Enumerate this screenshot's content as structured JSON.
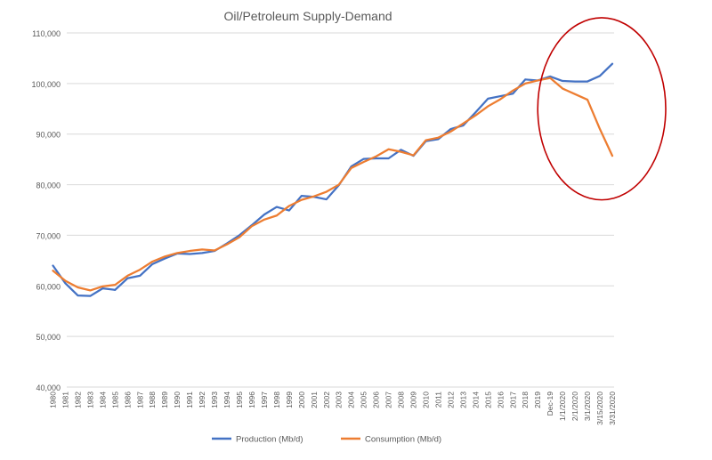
{
  "chart_data": {
    "type": "line",
    "title": "Oil/Petroleum Supply-Demand",
    "xlabel": "",
    "ylabel": "",
    "ylim": [
      40000,
      110000
    ],
    "yticks": [
      40000,
      50000,
      60000,
      70000,
      80000,
      90000,
      100000,
      110000
    ],
    "ytick_labels": [
      "40,000",
      "50,000",
      "60,000",
      "70,000",
      "80,000",
      "90,000",
      "100,000",
      "110,000"
    ],
    "grid": "horizontal",
    "legend_position": "bottom",
    "categories": [
      "1980",
      "1981",
      "1982",
      "1983",
      "1984",
      "1985",
      "1986",
      "1987",
      "1988",
      "1989",
      "1990",
      "1991",
      "1992",
      "1993",
      "1994",
      "1995",
      "1996",
      "1997",
      "1998",
      "1999",
      "2000",
      "2001",
      "2002",
      "2003",
      "2004",
      "2005",
      "2006",
      "2007",
      "2008",
      "2009",
      "2010",
      "2011",
      "2012",
      "2013",
      "2014",
      "2015",
      "2016",
      "2017",
      "2018",
      "2019",
      "Dec-19",
      "1/1/2020",
      "2/1/2020",
      "3/1/2020",
      "3/15/2020",
      "3/31/2020"
    ],
    "series": [
      {
        "name": "Production (Mb/d)",
        "color": "#4472C4",
        "values": [
          64000,
          60500,
          58100,
          58000,
          59500,
          59200,
          61500,
          62000,
          64300,
          65400,
          66400,
          66300,
          66500,
          66900,
          68400,
          70000,
          72000,
          74100,
          75600,
          74900,
          77800,
          77600,
          77100,
          79900,
          83600,
          85100,
          85200,
          85200,
          86900,
          85700,
          88600,
          89000,
          91000,
          91700,
          94300,
          97000,
          97500,
          98000,
          100800,
          100600,
          101400,
          100500,
          100400,
          100400,
          101500,
          103900
        ]
      },
      {
        "name": "Consumption (Mb/d)",
        "color": "#ED7D31",
        "values": [
          63000,
          61000,
          59700,
          59100,
          59900,
          60200,
          62000,
          63200,
          64800,
          65800,
          66500,
          66900,
          67200,
          67000,
          68200,
          69600,
          71800,
          73100,
          73900,
          75800,
          77000,
          77700,
          78600,
          80000,
          83300,
          84500,
          85600,
          87000,
          86500,
          85800,
          88800,
          89300,
          90500,
          92100,
          93700,
          95500,
          96900,
          98600,
          100000,
          100600,
          101100,
          99000,
          97900,
          96800,
          91000,
          85700
        ]
      }
    ],
    "annotations": [
      {
        "type": "ellipse",
        "color": "#C00000",
        "spans_categories": [
          "2019",
          "3/31/2020"
        ],
        "spans_values": [
          77000,
          113000
        ]
      }
    ]
  }
}
